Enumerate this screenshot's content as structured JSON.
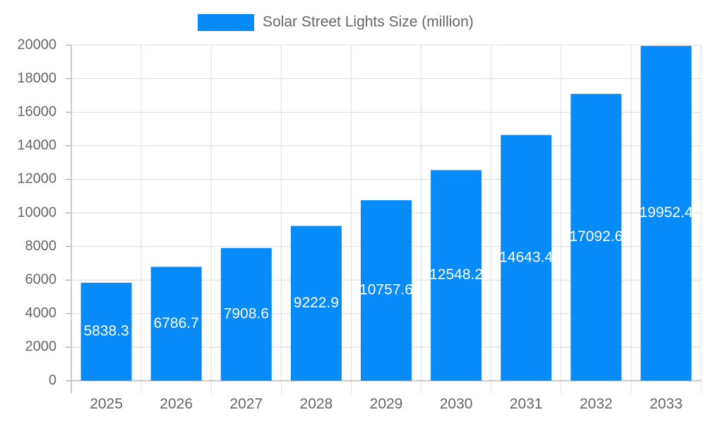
{
  "chart_data": {
    "type": "bar",
    "categories": [
      "2025",
      "2026",
      "2027",
      "2028",
      "2029",
      "2030",
      "2031",
      "2032",
      "2033"
    ],
    "series": [
      {
        "name": "Solar Street Lights Size (million)",
        "color": "#068bf8",
        "values": [
          5838.3,
          6786.7,
          7908.6,
          9222.9,
          10757.6,
          12548.2,
          14643.4,
          17092.6,
          19952.4
        ]
      }
    ],
    "ylim": [
      0,
      20000
    ],
    "yticks": [
      0,
      2000,
      4000,
      6000,
      8000,
      10000,
      12000,
      14000,
      16000,
      18000,
      20000
    ],
    "grid": true,
    "legend": "top"
  }
}
